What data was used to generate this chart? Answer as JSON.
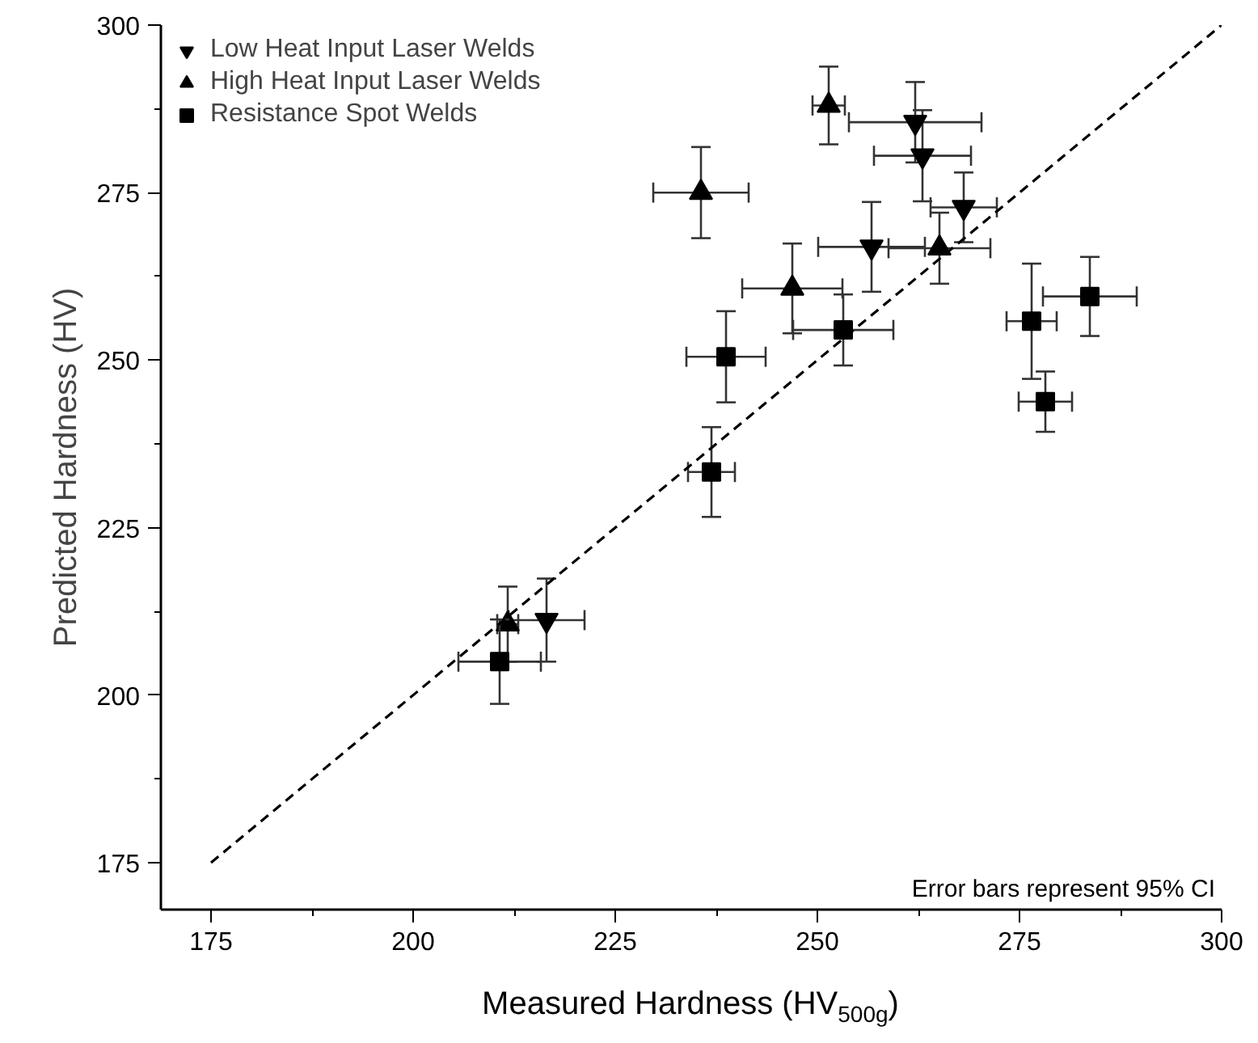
{
  "chart_data": {
    "type": "scatter",
    "xlabel": "Measured Hardness (HV$_{500g}$)",
    "ylabel": "Predicted Hardness (HV)",
    "xlim": [
      168.8,
      300
    ],
    "ylim": [
      168,
      300
    ],
    "xticks": [
      175,
      200,
      225,
      250,
      275,
      300
    ],
    "yticks": [
      175,
      200,
      225,
      250,
      275,
      300
    ],
    "grid": false,
    "legend": "top left",
    "annotations": [
      "Error bars represent 95% CI"
    ],
    "series": [
      {
        "name": "Low Heat Input Laser Welds",
        "color": "#000000",
        "marker": "triangle_down",
        "x": [
          262.1,
          263.0,
          268.1,
          256.7,
          216.5
        ],
        "values": [
          285.5,
          280.5,
          272.8,
          266.9,
          211.2
        ],
        "errors": [
          6.0,
          6.8,
          5.2,
          6.7,
          6.2
        ],
        "xerrors": [
          8.2,
          6.0,
          4.1,
          6.6,
          4.7
        ]
      },
      {
        "name": "High Heat Input Laser Welds",
        "color": "#000000",
        "marker": "triangle",
        "x": [
          251.4,
          265.1,
          246.9,
          235.6,
          211.7
        ],
        "values": [
          288.0,
          266.7,
          260.7,
          275.0,
          210.6
        ],
        "errors": [
          5.8,
          5.3,
          6.7,
          6.8,
          5.6
        ],
        "xerrors": [
          2.0,
          6.3,
          6.2,
          5.9,
          1.3
        ]
      },
      {
        "name": "Resistance Spot Welds",
        "color": "#000000",
        "marker": "square",
        "x": [
          253.2,
          238.7,
          236.9,
          276.5,
          283.7,
          278.2,
          210.7
        ],
        "values": [
          254.5,
          250.5,
          233.3,
          255.8,
          259.5,
          243.8,
          205.0
        ],
        "errors": [
          5.3,
          6.8,
          6.7,
          8.6,
          5.9,
          4.5,
          6.3
        ],
        "xerrors": [
          6.2,
          4.9,
          2.9,
          3.1,
          5.8,
          3.3,
          5.1
        ]
      },
      {
        "type": "line",
        "color": "#000000",
        "line_style": "dashed",
        "marker": "none",
        "x": [
          175,
          300
        ],
        "values": [
          175,
          300
        ]
      }
    ]
  }
}
